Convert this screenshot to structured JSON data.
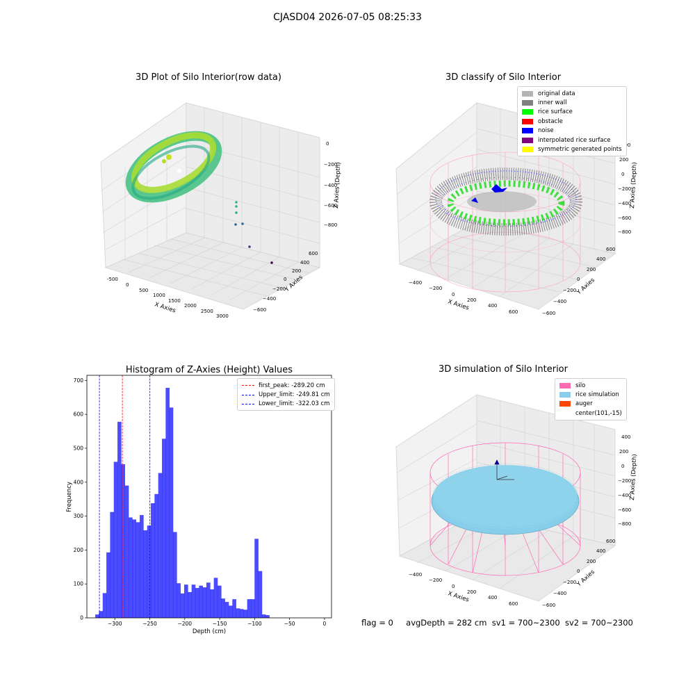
{
  "page": {
    "suptitle": "CJASD04 2026-07-05 08:25:33",
    "status": {
      "flag": "flag = 0",
      "avg_depth": "avgDepth = 282 cm",
      "sv1": "sv1 = 700~2300",
      "sv2": "sv2 = 700~2300"
    }
  },
  "panels": {
    "raw": {
      "title": "3D Plot of Silo Interior(row data)",
      "xlabel": "X Axies",
      "ylabel": "Y Axies",
      "zlabel": "Z Axies (Depth)",
      "x_ticks": [
        "-500",
        "0",
        "500",
        "1000",
        "1500",
        "2000",
        "2500",
        "3000"
      ],
      "y_ticks": [
        "600",
        "400",
        "200",
        "0",
        "−200",
        "−400",
        "−600"
      ],
      "z_ticks": [
        "0",
        "−200",
        "−400",
        "−600",
        "−800"
      ]
    },
    "classify": {
      "title": "3D classify of Silo Interior",
      "xlabel": "X Axies",
      "ylabel": "Y Axies",
      "zlabel": "Z Axies (Depth)",
      "x_ticks": [
        "−400",
        "−200",
        "0",
        "200",
        "400",
        "600"
      ],
      "y_ticks": [
        "600",
        "400",
        "200",
        "0",
        "−200",
        "−400",
        "−600"
      ],
      "z_ticks": [
        "400",
        "200",
        "0",
        "−200",
        "−400",
        "−600",
        "−800"
      ],
      "legend": [
        {
          "label": "original data",
          "color": "#b4b4b4"
        },
        {
          "label": "inner wall",
          "color": "#808080"
        },
        {
          "label": "rice surface",
          "color": "#00ff00"
        },
        {
          "label": "obstacle",
          "color": "#ff0000"
        },
        {
          "label": "noise",
          "color": "#0000ff"
        },
        {
          "label": "interpolated rice surface",
          "color": "#800080"
        },
        {
          "label": "symmetric generated points",
          "color": "#ffff00"
        }
      ]
    },
    "simulation": {
      "title": "3D simulation of Silo Interior",
      "xlabel": "X Axies",
      "ylabel": "Y Axies",
      "zlabel": "Z Axies (Depth)",
      "x_ticks": [
        "−400",
        "−200",
        "0",
        "200",
        "400",
        "600"
      ],
      "y_ticks": [
        "600",
        "400",
        "200",
        "0",
        "−200",
        "−400",
        "−600"
      ],
      "z_ticks": [
        "400",
        "200",
        "0",
        "−200",
        "−400",
        "−600",
        "−800"
      ],
      "legend": [
        {
          "label": "silo",
          "color": "#ff69b4"
        },
        {
          "label": "rice simulation",
          "color": "#87ceeb"
        },
        {
          "label": "auger",
          "color": "#ff4500"
        },
        {
          "label": "center(101,-15)",
          "color": "#ffffff"
        }
      ]
    }
  },
  "chart_data": {
    "type": "bar",
    "title": "Histogram of Z-Axies (Height) Values",
    "xlabel": "Depth (cm)",
    "ylabel": "Frequency",
    "xlim": [
      -340,
      10
    ],
    "ylim": [
      0,
      715
    ],
    "x_ticks": [
      -300,
      -250,
      -200,
      -150,
      -100,
      -50,
      0
    ],
    "y_ticks": [
      0,
      100,
      200,
      300,
      400,
      500,
      600,
      700
    ],
    "bar_color": "#0000ff",
    "bins": [
      {
        "left": -328.0,
        "width": 5.3,
        "value": 10
      },
      {
        "left": -322.7,
        "width": 5.3,
        "value": 20
      },
      {
        "left": -317.4,
        "width": 5.3,
        "value": 73
      },
      {
        "left": -312.1,
        "width": 5.3,
        "value": 193
      },
      {
        "left": -306.8,
        "width": 5.3,
        "value": 312
      },
      {
        "left": -301.5,
        "width": 5.3,
        "value": 460
      },
      {
        "left": -296.2,
        "width": 5.3,
        "value": 578
      },
      {
        "left": -290.9,
        "width": 5.3,
        "value": 453
      },
      {
        "left": -285.6,
        "width": 5.3,
        "value": 390
      },
      {
        "left": -280.3,
        "width": 5.3,
        "value": 296
      },
      {
        "left": -275.0,
        "width": 5.3,
        "value": 290
      },
      {
        "left": -269.7,
        "width": 5.3,
        "value": 282
      },
      {
        "left": -264.4,
        "width": 5.3,
        "value": 303
      },
      {
        "left": -259.1,
        "width": 5.3,
        "value": 258
      },
      {
        "left": -253.8,
        "width": 5.3,
        "value": 272
      },
      {
        "left": -248.5,
        "width": 5.3,
        "value": 338
      },
      {
        "left": -243.2,
        "width": 5.3,
        "value": 365
      },
      {
        "left": -237.9,
        "width": 5.3,
        "value": 427
      },
      {
        "left": -232.6,
        "width": 5.3,
        "value": 528
      },
      {
        "left": -227.3,
        "width": 5.3,
        "value": 678
      },
      {
        "left": -222.0,
        "width": 5.3,
        "value": 620
      },
      {
        "left": -216.7,
        "width": 5.3,
        "value": 253
      },
      {
        "left": -211.4,
        "width": 5.3,
        "value": 102
      },
      {
        "left": -206.1,
        "width": 5.3,
        "value": 72
      },
      {
        "left": -200.8,
        "width": 5.3,
        "value": 98
      },
      {
        "left": -195.5,
        "width": 5.3,
        "value": 76
      },
      {
        "left": -190.2,
        "width": 5.3,
        "value": 98
      },
      {
        "left": -184.9,
        "width": 5.3,
        "value": 88
      },
      {
        "left": -179.6,
        "width": 5.3,
        "value": 95
      },
      {
        "left": -174.3,
        "width": 5.3,
        "value": 90
      },
      {
        "left": -169.0,
        "width": 5.3,
        "value": 104
      },
      {
        "left": -163.7,
        "width": 5.3,
        "value": 84
      },
      {
        "left": -158.4,
        "width": 5.3,
        "value": 118
      },
      {
        "left": -153.1,
        "width": 5.3,
        "value": 95
      },
      {
        "left": -147.8,
        "width": 5.3,
        "value": 57
      },
      {
        "left": -142.5,
        "width": 5.3,
        "value": 47
      },
      {
        "left": -137.2,
        "width": 5.3,
        "value": 36
      },
      {
        "left": -131.9,
        "width": 5.3,
        "value": 55
      },
      {
        "left": -126.6,
        "width": 5.3,
        "value": 28
      },
      {
        "left": -121.3,
        "width": 5.3,
        "value": 26
      },
      {
        "left": -116.0,
        "width": 5.3,
        "value": 24
      },
      {
        "left": -110.7,
        "width": 5.3,
        "value": 55
      },
      {
        "left": -105.4,
        "width": 5.3,
        "value": 55
      },
      {
        "left": -100.1,
        "width": 5.3,
        "value": 233
      },
      {
        "left": -94.8,
        "width": 5.3,
        "value": 138
      },
      {
        "left": -89.5,
        "width": 5.3,
        "value": 10
      },
      {
        "left": -84.2,
        "width": 5.3,
        "value": 8
      }
    ],
    "vlines": [
      {
        "label": "first_peak: -289.20 cm",
        "x": -289.2,
        "color": "#ff0000"
      },
      {
        "label": "Upper_limit: -249.81 cm",
        "x": -249.81,
        "color": "#0000ff"
      },
      {
        "label": "Lower_limit: -322.03 cm",
        "x": -322.03,
        "color": "#0000ff"
      }
    ]
  }
}
